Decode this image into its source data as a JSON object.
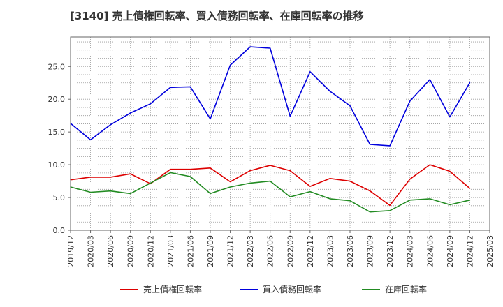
{
  "chart_data": {
    "type": "line",
    "title": "[3140]  売上債権回転率、買入債務回転率、在庫回転率の推移",
    "xlabel": "",
    "ylabel": "",
    "ylim": [
      0,
      29.5
    ],
    "yticks": [
      0.0,
      5.0,
      10.0,
      15.0,
      20.0,
      25.0
    ],
    "ytick_labels": [
      "0.0",
      "5.0",
      "10.0",
      "15.0",
      "20.0",
      "25.0"
    ],
    "grid": true,
    "legend_position": "bottom",
    "categories": [
      "2019/12",
      "2020/03",
      "2020/06",
      "2020/09",
      "2020/12",
      "2021/03",
      "2021/06",
      "2021/09",
      "2021/12",
      "2022/03",
      "2022/06",
      "2022/09",
      "2022/12",
      "2023/03",
      "2023/06",
      "2023/09",
      "2023/12",
      "2024/03",
      "2024/06",
      "2024/09",
      "2024/12",
      "2025/03"
    ],
    "series": [
      {
        "name": "売上債権回転率",
        "color": "#dd0000",
        "values": [
          7.7,
          8.1,
          8.1,
          8.6,
          7.1,
          9.3,
          9.3,
          9.5,
          7.4,
          9.1,
          9.9,
          9.1,
          6.7,
          7.9,
          7.5,
          6.0,
          3.8,
          7.8,
          10.0,
          9.0,
          6.4,
          null
        ]
      },
      {
        "name": "買入債務回転率",
        "color": "#0000dd",
        "values": [
          16.3,
          13.8,
          16.1,
          17.9,
          19.3,
          21.8,
          21.9,
          17.0,
          25.2,
          28.0,
          27.8,
          17.4,
          24.2,
          21.2,
          19.0,
          13.1,
          12.9,
          19.7,
          23.0,
          17.3,
          22.5,
          null
        ]
      },
      {
        "name": "在庫回転率",
        "color": "#228b22",
        "values": [
          6.6,
          5.8,
          6.0,
          5.6,
          7.2,
          8.8,
          8.2,
          5.6,
          6.6,
          7.2,
          7.5,
          5.1,
          5.9,
          4.8,
          4.5,
          2.8,
          3.0,
          4.6,
          4.8,
          3.9,
          4.6,
          null
        ]
      }
    ]
  }
}
